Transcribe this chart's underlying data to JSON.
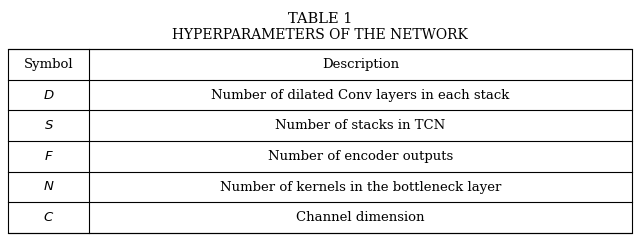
{
  "title_line1": "TABLE 1",
  "title_line2": "HYPERPARAMETERS OF THE NETWORK",
  "headers": [
    "Symbol",
    "Description"
  ],
  "rows": [
    [
      "D",
      "Number of dilated Conv layers in each stack"
    ],
    [
      "S",
      "Number of stacks in TCN"
    ],
    [
      "F",
      "Number of encoder outputs"
    ],
    [
      "N",
      "Number of kernels in the bottleneck layer"
    ],
    [
      "C",
      "Channel dimension"
    ]
  ],
  "col_split": 0.13,
  "background_color": "#ffffff",
  "line_color": "#000000",
  "text_color": "#000000",
  "title_fontsize": 10.5,
  "cell_fontsize": 9.5,
  "fig_width": 6.4,
  "fig_height": 2.37,
  "dpi": 100
}
